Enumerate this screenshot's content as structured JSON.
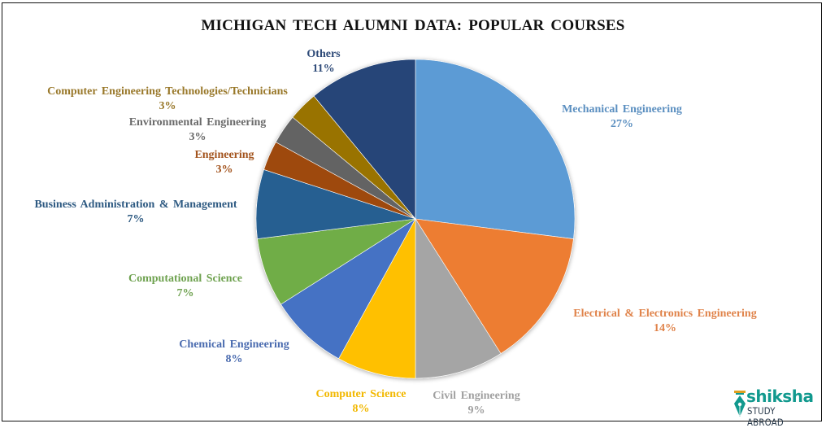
{
  "chart_data": {
    "type": "pie",
    "title": "MICHIGAN TECH ALUMNI DATA: POPULAR COURSES",
    "start_angle_deg": 0,
    "direction": "clockwise",
    "legend": "none (data labels outside with category name and percentage)",
    "categories": [
      "Mechanical Engineering",
      "Electrical & Electronics Engineering",
      "Civil Engineering",
      "Computer Science",
      "Chemical Engineering",
      "Computational Science",
      "Business Administration & Management",
      "Engineering",
      "Environmental Engineering",
      "Computer Engineering Technologies/Technicians",
      "Others"
    ],
    "values": [
      27,
      14,
      9,
      8,
      8,
      7,
      7,
      3,
      3,
      3,
      11
    ],
    "unit": "%",
    "colors": [
      "#5B9BD5",
      "#ED7D31",
      "#A5A5A5",
      "#FFC000",
      "#4472C4",
      "#70AD47",
      "#255E91",
      "#9E480E",
      "#636363",
      "#997300",
      "#264478"
    ],
    "label_colors": [
      "#5B8FC0",
      "#E0834A",
      "#A0A0A0",
      "#F2B800",
      "#4A6BAF",
      "#6FA250",
      "#2E5A82",
      "#A3541E",
      "#6A6A6A",
      "#99782A",
      "#2E4A78"
    ]
  },
  "labels": [
    {
      "name": "Mechanical Engineering",
      "pct": "27%"
    },
    {
      "name": "Electrical & Electronics Engineering",
      "pct": "14%"
    },
    {
      "name": "Civil Engineering",
      "pct": "9%"
    },
    {
      "name": "Computer Science",
      "pct": "8%"
    },
    {
      "name": "Chemical Engineering",
      "pct": "8%"
    },
    {
      "name": "Computational Science",
      "pct": "7%"
    },
    {
      "name": "Business Administration & Management",
      "pct": "7%"
    },
    {
      "name": "Engineering",
      "pct": "3%"
    },
    {
      "name": "Environmental Engineering",
      "pct": "3%"
    },
    {
      "name": "Computer Engineering Technologies/Technicians",
      "pct": "3%"
    },
    {
      "name": "Others",
      "pct": "11%"
    }
  ],
  "logo": {
    "brand": "shiksha",
    "subtitle": "STUDY ABROAD"
  }
}
